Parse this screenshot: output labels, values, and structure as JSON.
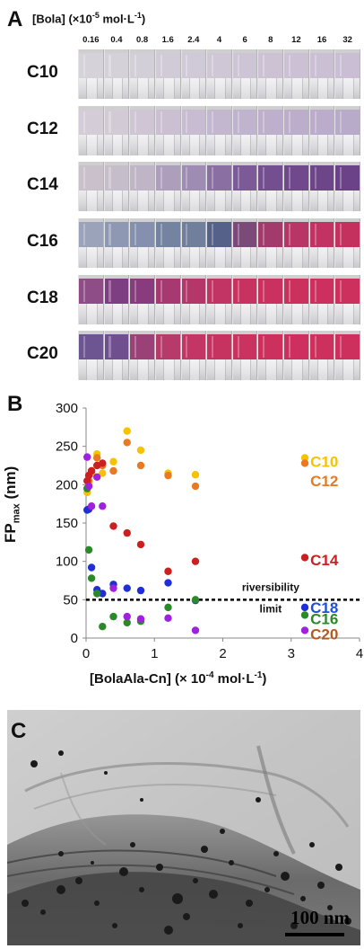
{
  "panelA": {
    "letter": "A",
    "concentration_title": "[Bola] (×10",
    "concentration_exp": "-5",
    "concentration_unit": " mol·L",
    "concentration_unit_exp": "-1",
    "concentration_close": ")",
    "concentrations": [
      "0.16",
      "0.4",
      "0.8",
      "1.6",
      "2.4",
      "4",
      "6",
      "8",
      "12",
      "16",
      "32"
    ],
    "rows": [
      {
        "label": "C10",
        "colors": [
          "#d6d2d9",
          "#d5d1d8",
          "#d3cfd8",
          "#d1cbd7",
          "#d0c9d7",
          "#cfc7d6",
          "#cdc4d5",
          "#ccc2d4",
          "#cbc0d4",
          "#cabfd3",
          "#c9bed3"
        ]
      },
      {
        "label": "C12",
        "colors": [
          "#d4ccd6",
          "#d2cad5",
          "#cfc5d4",
          "#cac0d2",
          "#c7bcd1",
          "#c3b6cf",
          "#c0b3cd",
          "#beb0cc",
          "#bcaecb",
          "#baacca",
          "#b8aac9"
        ]
      },
      {
        "label": "C14",
        "colors": [
          "#c9c0cc",
          "#c6bdca",
          "#bfb5c6",
          "#ad9ebc",
          "#9f8cb3",
          "#8a6fa3",
          "#7b5a97",
          "#744f90",
          "#70498c",
          "#6d4589",
          "#6b4287"
        ]
      },
      {
        "label": "C16",
        "colors": [
          "#9aa3b9",
          "#8e98b2",
          "#8490ae",
          "#74839f",
          "#6f7f9c",
          "#56618a",
          "#7b4a78",
          "#a23a6c",
          "#b83566",
          "#c23262",
          "#c5315f"
        ]
      },
      {
        "label": "C18",
        "colors": [
          "#8e4d87",
          "#7e3f82",
          "#883c7e",
          "#a63a70",
          "#b5376a",
          "#c23464",
          "#c83260",
          "#cb315f",
          "#cc315e",
          "#cd305e",
          "#ce305e"
        ]
      },
      {
        "label": "C20",
        "colors": [
          "#6c5591",
          "#6f4f8e",
          "#9a4278",
          "#b63a6a",
          "#c23564",
          "#c73361",
          "#ca325f",
          "#cc315e",
          "#cd305e",
          "#ce305e",
          "#ce305e"
        ]
      }
    ]
  },
  "panelB": {
    "letter": "B",
    "ylabel_main": "FP",
    "ylabel_sub": "max",
    "ylabel_unit": " (nm)",
    "xlabel": "[BolaAla-Cn] (× 10",
    "xlabel_exp": "-4",
    "xlabel_unit": " mol·L",
    "xlabel_unit_exp": "-1",
    "xlabel_close": ")",
    "annotation_line1": "riversibility",
    "annotation_line2": "limit"
  },
  "chart_data": {
    "type": "scatter",
    "xlim": [
      0,
      4
    ],
    "ylim": [
      0,
      300
    ],
    "xticks": [
      0,
      1,
      2,
      3,
      4
    ],
    "yticks": [
      0,
      50,
      100,
      150,
      200,
      250,
      300
    ],
    "grid": false,
    "reference_line": {
      "y": 50,
      "style": "dashed",
      "label": "riversibility limit"
    },
    "series": [
      {
        "name": "C10",
        "color": "#f7c200",
        "points": [
          [
            0.016,
            190
          ],
          [
            0.04,
            200
          ],
          [
            0.08,
            215
          ],
          [
            0.16,
            240
          ],
          [
            0.24,
            215
          ],
          [
            0.4,
            230
          ],
          [
            0.6,
            270
          ],
          [
            0.8,
            245
          ],
          [
            1.2,
            215
          ],
          [
            1.6,
            213
          ],
          [
            3.2,
            235
          ]
        ]
      },
      {
        "name": "C12",
        "color": "#e87a24",
        "points": [
          [
            0.016,
            195
          ],
          [
            0.04,
            205
          ],
          [
            0.08,
            218
          ],
          [
            0.16,
            235
          ],
          [
            0.24,
            225
          ],
          [
            0.4,
            218
          ],
          [
            0.6,
            255
          ],
          [
            0.8,
            225
          ],
          [
            1.2,
            212
          ],
          [
            1.6,
            198
          ],
          [
            3.2,
            228
          ]
        ]
      },
      {
        "name": "C14",
        "color": "#cc1f1f",
        "points": [
          [
            0.016,
            205
          ],
          [
            0.04,
            212
          ],
          [
            0.08,
            218
          ],
          [
            0.16,
            225
          ],
          [
            0.24,
            228
          ],
          [
            0.4,
            146
          ],
          [
            0.6,
            137
          ],
          [
            0.8,
            122
          ],
          [
            1.2,
            87
          ],
          [
            1.6,
            100
          ],
          [
            3.2,
            105
          ]
        ]
      },
      {
        "name": "C18",
        "color": "#1f2ed6",
        "points": [
          [
            0.016,
            167
          ],
          [
            0.04,
            168
          ],
          [
            0.08,
            92
          ],
          [
            0.16,
            63
          ],
          [
            0.24,
            58
          ],
          [
            0.4,
            70
          ],
          [
            0.6,
            65
          ],
          [
            0.8,
            62
          ],
          [
            1.2,
            72
          ],
          [
            1.6,
            49
          ],
          [
            3.2,
            40
          ]
        ]
      },
      {
        "name": "C16",
        "color": "#2a8a2a",
        "points": [
          [
            0.016,
            195
          ],
          [
            0.04,
            115
          ],
          [
            0.08,
            78
          ],
          [
            0.16,
            58
          ],
          [
            0.24,
            15
          ],
          [
            0.4,
            28
          ],
          [
            0.6,
            20
          ],
          [
            0.8,
            22
          ],
          [
            1.2,
            40
          ],
          [
            1.6,
            50
          ],
          [
            3.2,
            30
          ]
        ]
      },
      {
        "name": "C20",
        "color": "#a020e0",
        "points": [
          [
            0.016,
            236
          ],
          [
            0.04,
            198
          ],
          [
            0.08,
            172
          ],
          [
            0.16,
            210
          ],
          [
            0.24,
            172
          ],
          [
            0.4,
            65
          ],
          [
            0.6,
            28
          ],
          [
            0.8,
            25
          ],
          [
            1.2,
            26
          ],
          [
            1.6,
            10
          ],
          [
            3.2,
            10
          ]
        ]
      }
    ],
    "legend_labels": [
      {
        "name": "C10",
        "color": "#f7c200",
        "y": 230
      },
      {
        "name": "C12",
        "color": "#e87a24",
        "y": 205
      },
      {
        "name": "C14",
        "color": "#cc1f1f",
        "y": 102
      },
      {
        "name": "C18",
        "color": "#1f4fd6",
        "y": 40
      },
      {
        "name": "C16",
        "color": "#2a8a2a",
        "y": 25
      },
      {
        "name": "C20",
        "color": "#b35a20",
        "y": 5
      }
    ]
  },
  "panelC": {
    "letter": "C",
    "scale_label": "100 nm"
  }
}
